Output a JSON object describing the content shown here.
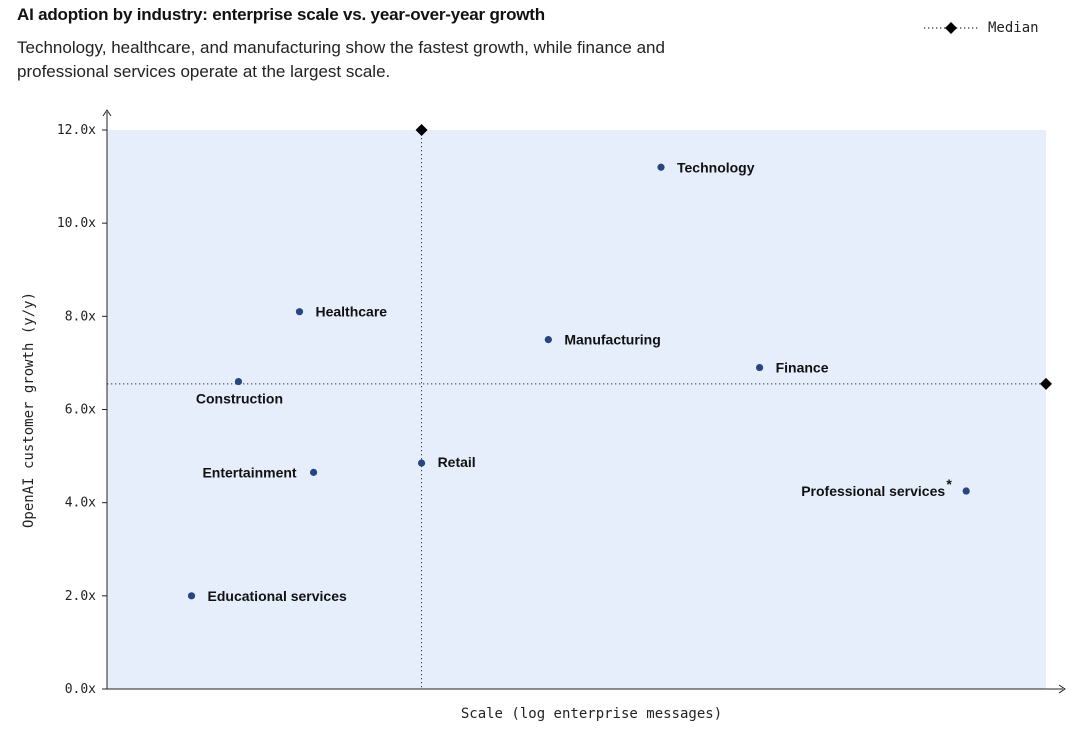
{
  "header": {
    "title": "AI adoption by industry: enterprise scale vs. year-over-year growth",
    "subtitle": "Technology, healthcare, and manufacturing show the fastest growth, while finance and professional services operate at the largest scale."
  },
  "legend": {
    "median_label": "Median"
  },
  "chart_data": {
    "type": "scatter",
    "title": "AI adoption by industry: enterprise scale vs. year-over-year growth",
    "subtitle": "Technology, healthcare, and manufacturing show the fastest growth, while finance and professional services operate at the largest scale.",
    "xlabel": "Scale (log enterprise messages)",
    "ylabel": "OpenAI customer growth (y/y)",
    "xlim": [
      0,
      100
    ],
    "ylim": [
      0,
      12
    ],
    "yticks": [
      0,
      2,
      4,
      6,
      8,
      10,
      12
    ],
    "ytick_labels": [
      "0.0x",
      "2.0x",
      "4.0x",
      "6.0x",
      "8.0x",
      "10.0x",
      "12.0x"
    ],
    "legend_position": "top-right",
    "grid": false,
    "colors": {
      "plot_background": "#e6eefc",
      "point": "#27467f",
      "median": "#000000"
    },
    "median": {
      "x": 33.5,
      "y": 6.55,
      "label": "Median"
    },
    "points": [
      {
        "label": "Technology",
        "x": 59.0,
        "y": 11.2
      },
      {
        "label": "Healthcare",
        "x": 20.5,
        "y": 8.1
      },
      {
        "label": "Manufacturing",
        "x": 47.0,
        "y": 7.5
      },
      {
        "label": "Finance",
        "x": 69.5,
        "y": 6.9
      },
      {
        "label": "Construction",
        "x": 14.0,
        "y": 6.6
      },
      {
        "label": "Retail",
        "x": 33.5,
        "y": 4.85
      },
      {
        "label": "Entertainment",
        "x": 22.0,
        "y": 4.65
      },
      {
        "label": "Professional services",
        "x": 91.5,
        "y": 4.25,
        "footnote": "*"
      },
      {
        "label": "Educational services",
        "x": 9.0,
        "y": 2.0
      }
    ]
  }
}
